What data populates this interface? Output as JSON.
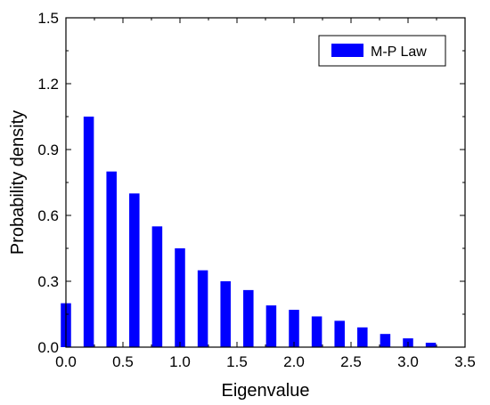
{
  "chart_data": {
    "type": "bar",
    "x": [
      0.0,
      0.2,
      0.4,
      0.6,
      0.8,
      1.0,
      1.2,
      1.4,
      1.6,
      1.8,
      2.0,
      2.2,
      2.4,
      2.6,
      2.8,
      3.0,
      3.2
    ],
    "series": [
      {
        "name": "M-P Law",
        "values": [
          0.2,
          1.05,
          0.8,
          0.7,
          0.55,
          0.45,
          0.35,
          0.3,
          0.26,
          0.19,
          0.17,
          0.14,
          0.12,
          0.09,
          0.06,
          0.04,
          0.02
        ],
        "color": "#0000ff"
      }
    ],
    "xlabel": "Eigenvalue",
    "ylabel": "Probability density",
    "xlim": [
      0.0,
      3.5
    ],
    "ylim": [
      0.0,
      1.5
    ],
    "x_ticks": [
      "0.0",
      "0.5",
      "1.0",
      "1.5",
      "2.0",
      "2.5",
      "3.0",
      "3.5"
    ],
    "y_ticks": [
      "0.0",
      "0.3",
      "0.6",
      "0.9",
      "1.2",
      "1.5"
    ],
    "bar_width": 0.09,
    "grid": false,
    "legend_position": "top-right"
  }
}
